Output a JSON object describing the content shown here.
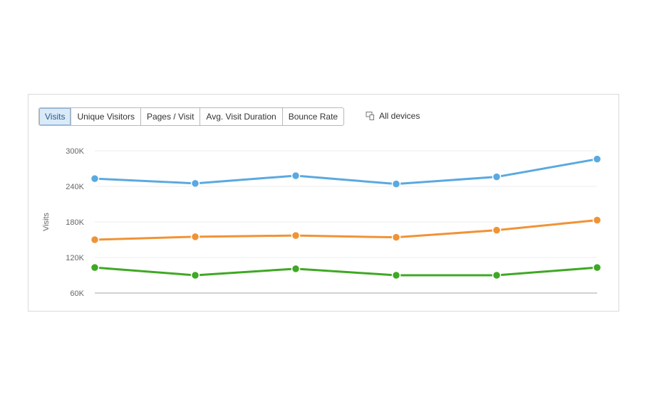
{
  "tabs": [
    {
      "label": "Visits",
      "active": true
    },
    {
      "label": "Unique Visitors",
      "active": false
    },
    {
      "label": "Pages / Visit",
      "active": false
    },
    {
      "label": "Avg. Visit Duration",
      "active": false
    },
    {
      "label": "Bounce Rate",
      "active": false
    }
  ],
  "devices": {
    "label": "All devices",
    "icon": "devices-icon"
  },
  "chart_data": {
    "type": "line",
    "ylabel": "Visits",
    "xlabel": "",
    "ylim": [
      60000,
      300000
    ],
    "yticks": [
      {
        "value": 300000,
        "label": "300K"
      },
      {
        "value": 240000,
        "label": "240K"
      },
      {
        "value": 180000,
        "label": "180K"
      },
      {
        "value": 120000,
        "label": "120K"
      },
      {
        "value": 60000,
        "label": "60K"
      }
    ],
    "grid": true,
    "point_count": 6,
    "series": [
      {
        "color": "#5aa9e0",
        "values": [
          253000,
          245000,
          258000,
          244000,
          256000,
          286000
        ]
      },
      {
        "color": "#f09335",
        "values": [
          150000,
          155000,
          157000,
          154000,
          166000,
          183000
        ]
      },
      {
        "color": "#3fa824",
        "values": [
          103000,
          90000,
          101000,
          90000,
          90000,
          103000
        ]
      }
    ]
  }
}
